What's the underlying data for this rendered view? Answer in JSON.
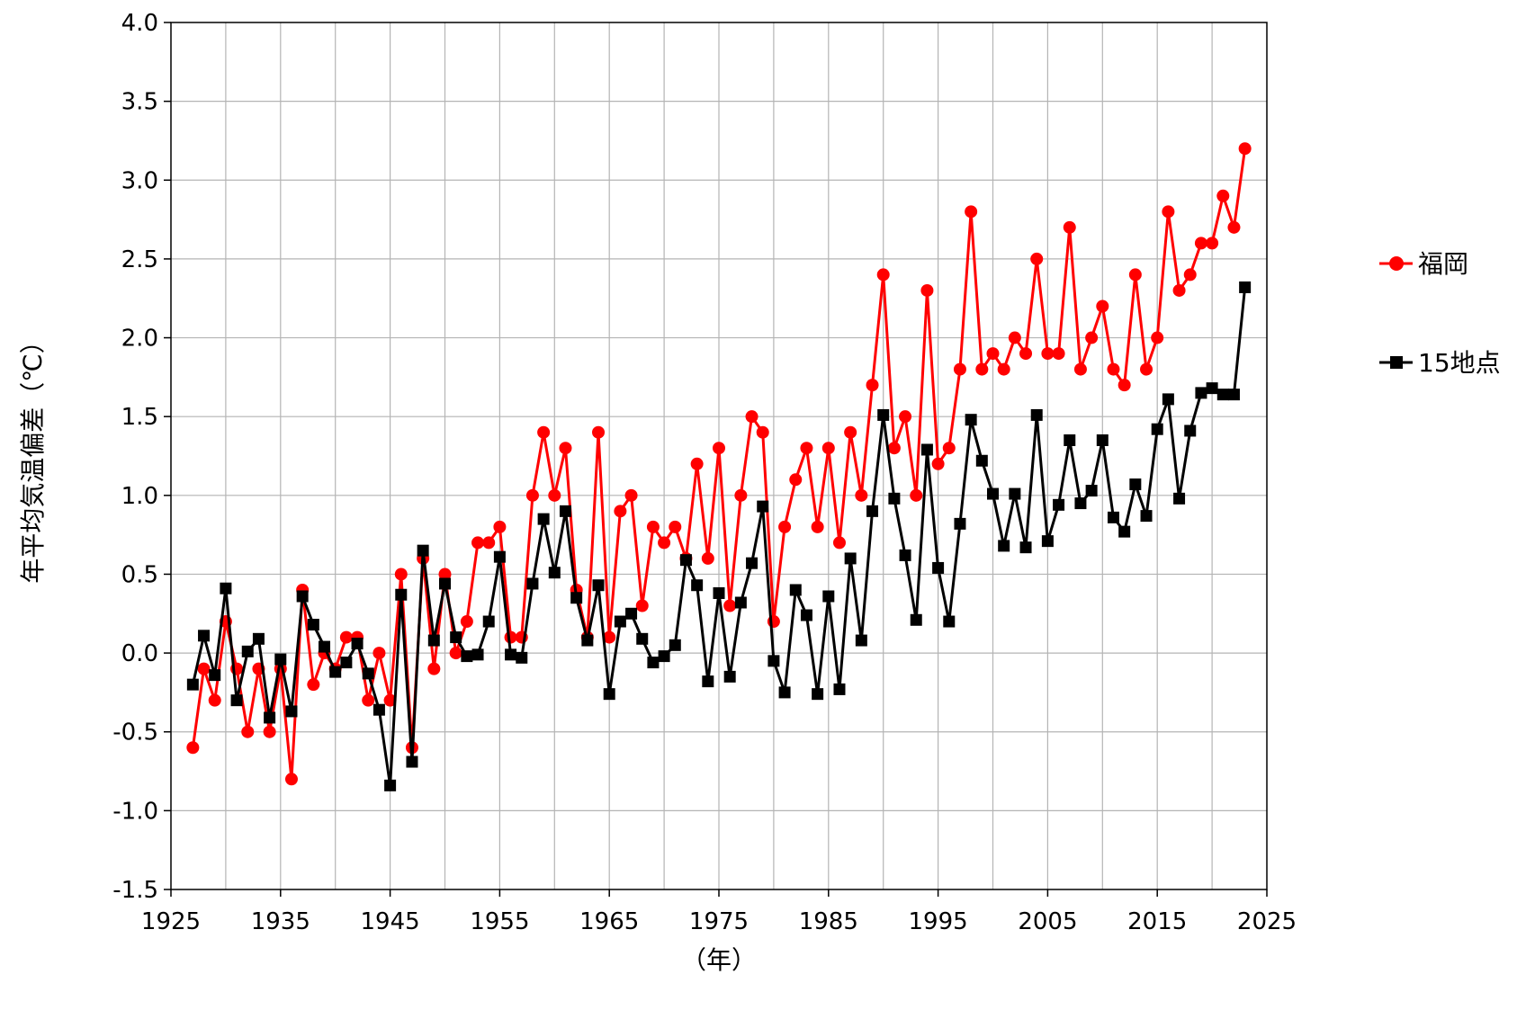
{
  "chart_data": {
    "type": "line",
    "ylabel": "年平均気温偏差（℃）",
    "xlabel": "（年）",
    "xlim": [
      1925,
      2025
    ],
    "ylim": [
      -1.5,
      4.0
    ],
    "x_ticks": [
      "1925",
      "1935",
      "1945",
      "1955",
      "1965",
      "1975",
      "1985",
      "1995",
      "2005",
      "2015",
      "2025"
    ],
    "y_ticks": [
      "4.0",
      "3.5",
      "3.0",
      "2.5",
      "2.0",
      "1.5",
      "1.0",
      "0.5",
      "0.0",
      "-0.5",
      "-1.0",
      "-1.5"
    ],
    "grid": true,
    "legend_position": "right",
    "x": [
      1927,
      1928,
      1929,
      1930,
      1931,
      1932,
      1933,
      1934,
      1935,
      1936,
      1937,
      1938,
      1939,
      1940,
      1941,
      1942,
      1943,
      1944,
      1945,
      1946,
      1947,
      1948,
      1949,
      1950,
      1951,
      1952,
      1953,
      1954,
      1955,
      1956,
      1957,
      1958,
      1959,
      1960,
      1961,
      1962,
      1963,
      1964,
      1965,
      1966,
      1967,
      1968,
      1969,
      1970,
      1971,
      1972,
      1973,
      1974,
      1975,
      1976,
      1977,
      1978,
      1979,
      1980,
      1981,
      1982,
      1983,
      1984,
      1985,
      1986,
      1987,
      1988,
      1989,
      1990,
      1991,
      1992,
      1993,
      1994,
      1995,
      1996,
      1997,
      1998,
      1999,
      2000,
      2001,
      2002,
      2003,
      2004,
      2005,
      2006,
      2007,
      2008,
      2009,
      2010,
      2011,
      2012,
      2013,
      2014,
      2015,
      2016,
      2017,
      2018,
      2019,
      2020,
      2021,
      2022,
      2023
    ],
    "series": [
      {
        "name": "福岡",
        "color": "#ff0000",
        "marker": "circle",
        "values": [
          -0.6,
          -0.1,
          -0.3,
          0.2,
          -0.1,
          -0.5,
          -0.1,
          -0.5,
          -0.1,
          -0.8,
          0.4,
          -0.2,
          0.0,
          -0.1,
          0.1,
          0.1,
          -0.3,
          0.0,
          -0.3,
          0.5,
          -0.6,
          0.6,
          -0.1,
          0.5,
          0.0,
          0.2,
          0.7,
          0.7,
          0.8,
          0.1,
          0.1,
          1.0,
          1.4,
          1.0,
          1.3,
          0.4,
          0.1,
          1.4,
          0.1,
          0.9,
          1.0,
          0.3,
          0.8,
          0.7,
          0.8,
          0.6,
          1.2,
          0.6,
          1.3,
          0.3,
          1.0,
          1.5,
          1.4,
          0.2,
          0.8,
          1.1,
          1.3,
          0.8,
          1.3,
          0.7,
          1.4,
          1.0,
          1.7,
          2.4,
          1.3,
          1.5,
          1.0,
          2.3,
          1.2,
          1.3,
          1.8,
          2.8,
          1.8,
          1.9,
          1.8,
          2.0,
          1.9,
          2.5,
          1.9,
          1.9,
          2.7,
          1.8,
          2.0,
          2.2,
          1.8,
          1.7,
          2.4,
          1.8,
          2.0,
          2.8,
          2.3,
          2.4,
          2.6,
          2.6,
          2.9,
          2.7,
          3.2
        ]
      },
      {
        "name": "15地点",
        "color": "#000000",
        "marker": "square",
        "values": [
          -0.2,
          0.11,
          -0.14,
          0.41,
          -0.3,
          0.01,
          0.09,
          -0.41,
          -0.04,
          -0.37,
          0.36,
          0.18,
          0.04,
          -0.12,
          -0.06,
          0.06,
          -0.13,
          -0.36,
          -0.84,
          0.37,
          -0.69,
          0.65,
          0.08,
          0.44,
          0.1,
          -0.02,
          -0.01,
          0.2,
          0.61,
          -0.01,
          -0.03,
          0.44,
          0.85,
          0.51,
          0.9,
          0.35,
          0.08,
          0.43,
          -0.26,
          0.2,
          0.25,
          0.09,
          -0.06,
          -0.02,
          0.05,
          0.59,
          0.43,
          -0.18,
          0.38,
          -0.15,
          0.32,
          0.57,
          0.93,
          -0.05,
          -0.25,
          0.4,
          0.24,
          -0.26,
          0.36,
          -0.23,
          0.6,
          0.08,
          0.9,
          1.51,
          0.98,
          0.62,
          0.21,
          1.29,
          0.54,
          0.2,
          0.82,
          1.48,
          1.22,
          1.01,
          0.68,
          1.01,
          0.67,
          1.51,
          0.71,
          0.94,
          1.35,
          0.95,
          1.03,
          1.35,
          0.86,
          0.77,
          1.07,
          0.87,
          1.42,
          1.61,
          0.98,
          1.41,
          1.65,
          1.68,
          1.64,
          1.64,
          2.32
        ]
      }
    ]
  }
}
